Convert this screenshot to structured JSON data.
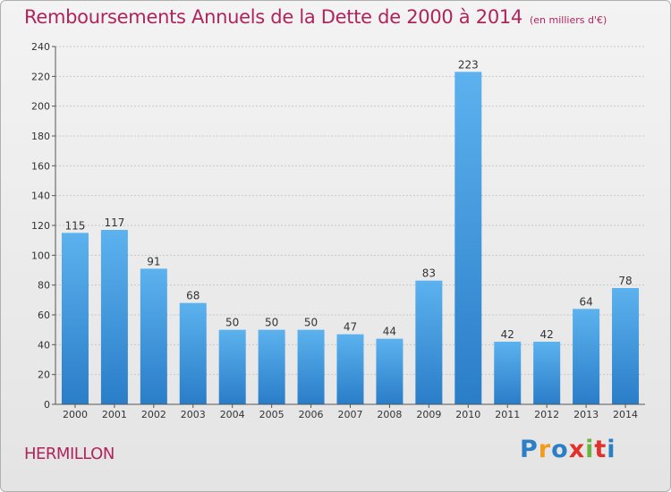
{
  "chart_data": {
    "type": "bar",
    "title": "Remboursements Annuels de la Dette de 2000 à 2014",
    "subtitle": "(en milliers d'€)",
    "location": "HERMILLON",
    "brand": [
      "P",
      "r",
      "o",
      "x",
      "i",
      "t",
      "i"
    ],
    "categories": [
      "2000",
      "2001",
      "2002",
      "2003",
      "2004",
      "2005",
      "2006",
      "2007",
      "2008",
      "2009",
      "2010",
      "2011",
      "2012",
      "2013",
      "2014"
    ],
    "values": [
      115,
      117,
      91,
      68,
      50,
      50,
      50,
      47,
      44,
      83,
      223,
      42,
      42,
      64,
      78
    ],
    "ylim": [
      0,
      240
    ],
    "yticks": [
      0,
      20,
      40,
      60,
      80,
      100,
      120,
      140,
      160,
      180,
      200,
      220,
      240
    ],
    "grid": true,
    "colors": {
      "bar_light": "#5aaeea",
      "bar_dark": "#2a7dc8",
      "title": "#b0245c"
    }
  }
}
